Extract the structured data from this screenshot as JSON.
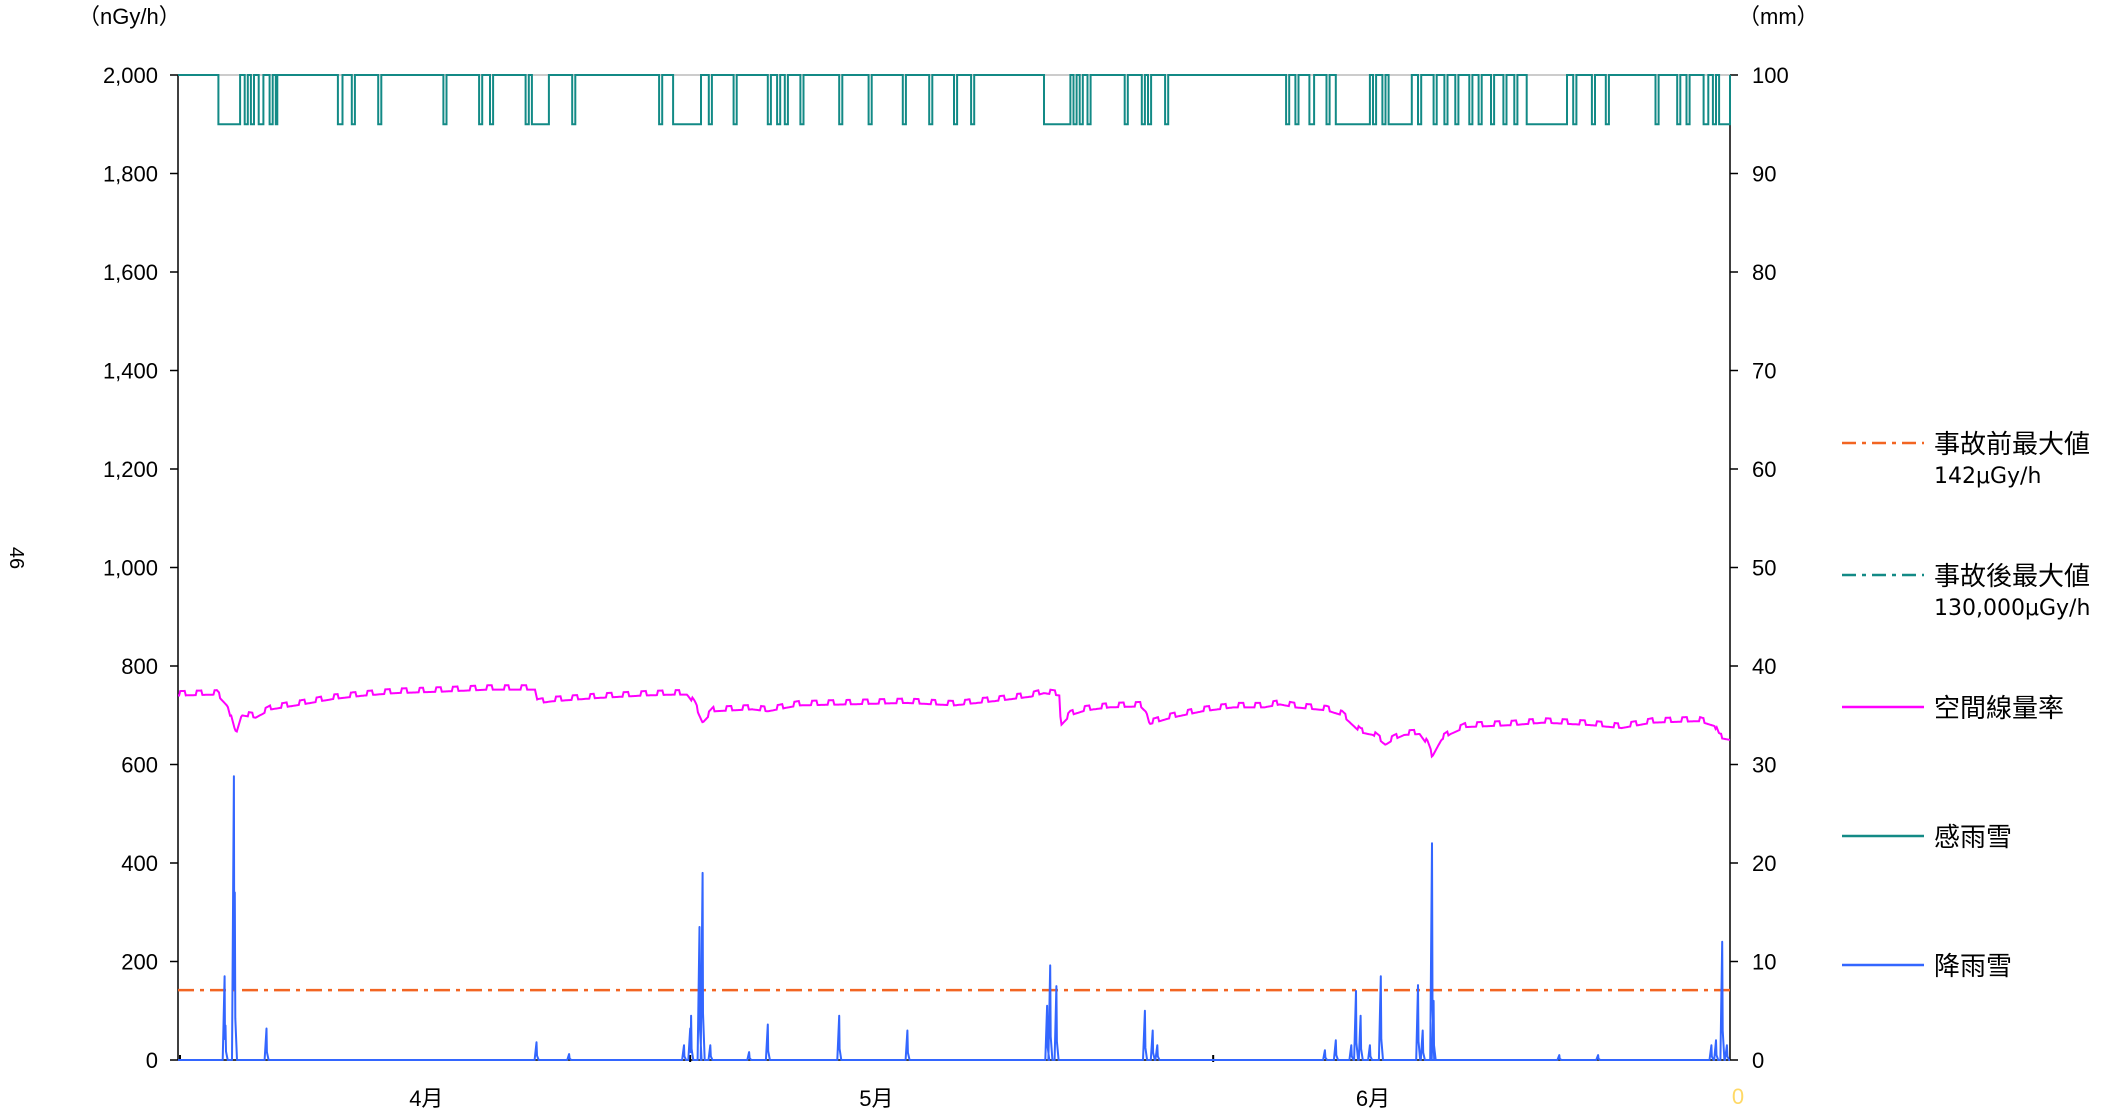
{
  "page_number": "46",
  "chart_data": {
    "type": "line",
    "left_axis_unit": "（nGy/h）",
    "right_axis_unit": "（mm）",
    "y_left": {
      "min": 0,
      "max": 2000,
      "ticks": [
        "0",
        "200",
        "400",
        "600",
        "800",
        "1,000",
        "1,200",
        "1,400",
        "1,600",
        "1,800",
        "2,000"
      ],
      "tick_values": [
        0,
        200,
        400,
        600,
        800,
        1000,
        1200,
        1400,
        1600,
        1800,
        2000
      ]
    },
    "y_right": {
      "min": 0,
      "max": 100,
      "ticks": [
        "0",
        "10",
        "20",
        "30",
        "40",
        "50",
        "60",
        "70",
        "80",
        "90",
        "100"
      ],
      "tick_values": [
        0,
        10,
        20,
        30,
        40,
        50,
        60,
        70,
        80,
        90,
        100
      ]
    },
    "x": {
      "min": 0,
      "max": 100,
      "month_labels": [
        {
          "label": "4月",
          "x": 16
        },
        {
          "label": "5月",
          "x": 45
        },
        {
          "label": "6月",
          "x": 77
        }
      ],
      "month_boundaries": [
        33,
        66.7
      ]
    },
    "orphan_label": "0",
    "legend": [
      {
        "label": "事故前最大値",
        "sub": "142μGy/h",
        "style": "dashdot",
        "color": "#f26522"
      },
      {
        "label": "事故後最大値",
        "sub": "130,000μGy/h",
        "style": "dashdot",
        "color": "#138a86"
      },
      {
        "label": "空間線量率",
        "sub": "",
        "style": "solid",
        "color": "#ff00ff"
      },
      {
        "label": "感雨雪",
        "sub": "",
        "style": "solid",
        "color": "#138a86"
      },
      {
        "label": "降雨雪",
        "sub": "",
        "style": "solid",
        "color": "#3366ff"
      }
    ],
    "series": [
      {
        "name": "事故前最大値",
        "axis": "left",
        "color": "#f26522",
        "points": [
          [
            0,
            142
          ],
          [
            100,
            142
          ]
        ]
      },
      {
        "name": "空間線量率",
        "axis": "left",
        "color": "#ff00ff",
        "points": [
          [
            0,
            740
          ],
          [
            2.5,
            742
          ],
          [
            3.2,
            718
          ],
          [
            3.7,
            658
          ],
          [
            4.1,
            700
          ],
          [
            5,
            695
          ],
          [
            6,
            712
          ],
          [
            8,
            722
          ],
          [
            10,
            733
          ],
          [
            12,
            740
          ],
          [
            14,
            745
          ],
          [
            17,
            748
          ],
          [
            20,
            752
          ],
          [
            23,
            752
          ],
          [
            23.2,
            724
          ],
          [
            24,
            728
          ],
          [
            27,
            735
          ],
          [
            30,
            740
          ],
          [
            32,
            742
          ],
          [
            32.8,
            742
          ],
          [
            33.3,
            720
          ],
          [
            33.8,
            685
          ],
          [
            34.5,
            708
          ],
          [
            37,
            712
          ],
          [
            38,
            708
          ],
          [
            40,
            720
          ],
          [
            43,
            722
          ],
          [
            47,
            725
          ],
          [
            50,
            720
          ],
          [
            53,
            730
          ],
          [
            55,
            738
          ],
          [
            55.8,
            745
          ],
          [
            56.8,
            740
          ],
          [
            56.8,
            720
          ],
          [
            56.9,
            680
          ],
          [
            57.5,
            700
          ],
          [
            58.5,
            710
          ],
          [
            60,
            716
          ],
          [
            62,
            718
          ],
          [
            62.4,
            706
          ],
          [
            62.6,
            682
          ],
          [
            64,
            695
          ],
          [
            66,
            708
          ],
          [
            68,
            716
          ],
          [
            70,
            716
          ],
          [
            71,
            722
          ],
          [
            72,
            716
          ],
          [
            74,
            710
          ],
          [
            75,
            700
          ],
          [
            76.2,
            665
          ],
          [
            77,
            660
          ],
          [
            77.8,
            640
          ],
          [
            78.3,
            650
          ],
          [
            79,
            660
          ],
          [
            80,
            662
          ],
          [
            80.5,
            640
          ],
          [
            80.8,
            615
          ],
          [
            81.4,
            650
          ],
          [
            82,
            662
          ],
          [
            83,
            676
          ],
          [
            86,
            680
          ],
          [
            88,
            685
          ],
          [
            91,
            680
          ],
          [
            93,
            674
          ],
          [
            95,
            685
          ],
          [
            98,
            688
          ],
          [
            99,
            678
          ],
          [
            99.3,
            654
          ],
          [
            100,
            650
          ]
        ],
        "wiggle": 9
      },
      {
        "name": "降雨雪",
        "axis": "right",
        "color": "#3366ff",
        "events": [
          {
            "x": 3.0,
            "peaks": [
              8.5,
              3.5
            ]
          },
          {
            "x": 3.6,
            "peaks": [
              28.8,
              17
            ]
          },
          {
            "x": 5.7,
            "peaks": [
              3.2
            ]
          },
          {
            "x": 23.1,
            "peaks": [
              1.8
            ]
          },
          {
            "x": 25.2,
            "peaks": [
              0.6
            ]
          },
          {
            "x": 32.6,
            "peaks": [
              1.5
            ]
          },
          {
            "x": 33.0,
            "peaks": [
              3.2,
              4.5
            ]
          },
          {
            "x": 33.6,
            "peaks": [
              13.5
            ]
          },
          {
            "x": 33.8,
            "peaks": [
              19
            ]
          },
          {
            "x": 34.3,
            "peaks": [
              1.5
            ]
          },
          {
            "x": 36.8,
            "peaks": [
              0.8
            ]
          },
          {
            "x": 38.0,
            "peaks": [
              3.6
            ]
          },
          {
            "x": 42.6,
            "peaks": [
              4.5
            ]
          },
          {
            "x": 47.0,
            "peaks": [
              3.0
            ]
          },
          {
            "x": 56.0,
            "peaks": [
              5.5
            ]
          },
          {
            "x": 56.2,
            "peaks": [
              9.6
            ]
          },
          {
            "x": 56.6,
            "peaks": [
              7.5
            ]
          },
          {
            "x": 62.3,
            "peaks": [
              5.0
            ]
          },
          {
            "x": 62.8,
            "peaks": [
              3.0
            ]
          },
          {
            "x": 63.1,
            "peaks": [
              1.5
            ]
          },
          {
            "x": 73.9,
            "peaks": [
              1.0
            ]
          },
          {
            "x": 74.6,
            "peaks": [
              2.0
            ]
          },
          {
            "x": 75.6,
            "peaks": [
              1.5
            ]
          },
          {
            "x": 75.9,
            "peaks": [
              7.0
            ]
          },
          {
            "x": 76.2,
            "peaks": [
              4.5
            ]
          },
          {
            "x": 76.8,
            "peaks": [
              1.5
            ]
          },
          {
            "x": 77.5,
            "peaks": [
              8.5
            ]
          },
          {
            "x": 79.9,
            "peaks": [
              7.6
            ]
          },
          {
            "x": 80.2,
            "peaks": [
              3.0
            ]
          },
          {
            "x": 80.8,
            "peaks": [
              22
            ]
          },
          {
            "x": 80.9,
            "peaks": [
              6
            ]
          },
          {
            "x": 89.0,
            "peaks": [
              0.5
            ]
          },
          {
            "x": 91.5,
            "peaks": [
              0.5
            ]
          },
          {
            "x": 98.8,
            "peaks": [
              1.5
            ]
          },
          {
            "x": 99.1,
            "peaks": [
              2.0
            ]
          },
          {
            "x": 99.5,
            "peaks": [
              12
            ]
          },
          {
            "x": 99.8,
            "peaks": [
              1.5
            ]
          }
        ]
      },
      {
        "name": "感雨雪",
        "axis": "right",
        "color": "#138a86",
        "wet_intervals": [
          [
            2.6,
            4.0
          ],
          [
            4.3,
            4.5
          ],
          [
            4.7,
            4.9
          ],
          [
            5.2,
            5.5
          ],
          [
            5.9,
            6.1
          ],
          [
            6.3,
            6.4
          ],
          [
            10.3,
            10.6
          ],
          [
            11.2,
            11.4
          ],
          [
            12.9,
            13.1
          ],
          [
            17.1,
            17.3
          ],
          [
            19.4,
            19.6
          ],
          [
            20.1,
            20.3
          ],
          [
            22.4,
            22.6
          ],
          [
            22.8,
            23.9
          ],
          [
            25.4,
            25.6
          ],
          [
            31.0,
            31.2
          ],
          [
            31.9,
            33.7
          ],
          [
            34.2,
            34.4
          ],
          [
            35.8,
            36.0
          ],
          [
            38.0,
            38.2
          ],
          [
            38.6,
            38.8
          ],
          [
            39.1,
            39.3
          ],
          [
            40.1,
            40.3
          ],
          [
            42.6,
            42.8
          ],
          [
            44.5,
            44.7
          ],
          [
            46.7,
            46.9
          ],
          [
            48.4,
            48.6
          ],
          [
            50.0,
            50.2
          ],
          [
            51.1,
            51.3
          ],
          [
            55.8,
            57.5
          ],
          [
            57.7,
            57.9
          ],
          [
            58.1,
            58.3
          ],
          [
            58.6,
            58.8
          ],
          [
            61.0,
            61.2
          ],
          [
            62.1,
            62.3
          ],
          [
            62.5,
            62.7
          ],
          [
            63.6,
            63.8
          ],
          [
            71.4,
            71.6
          ],
          [
            72.0,
            72.2
          ],
          [
            72.9,
            73.2
          ],
          [
            74.0,
            74.2
          ],
          [
            74.6,
            76.8
          ],
          [
            77.0,
            77.2
          ],
          [
            77.6,
            77.8
          ],
          [
            78.0,
            79.5
          ],
          [
            79.9,
            80.1
          ],
          [
            80.9,
            81.1
          ],
          [
            81.6,
            81.8
          ],
          [
            82.3,
            82.5
          ],
          [
            83.2,
            83.4
          ],
          [
            83.8,
            84.0
          ],
          [
            84.6,
            84.8
          ],
          [
            85.4,
            85.6
          ],
          [
            86.1,
            86.3
          ],
          [
            86.9,
            89.5
          ],
          [
            89.9,
            90.1
          ],
          [
            91.1,
            91.3
          ],
          [
            92.0,
            92.2
          ],
          [
            95.2,
            95.4
          ],
          [
            96.6,
            96.8
          ],
          [
            97.2,
            97.4
          ],
          [
            98.3,
            98.6
          ],
          [
            98.9,
            99.1
          ],
          [
            99.3,
            100
          ]
        ],
        "dry_value": 100,
        "wet_value": 95
      }
    ]
  }
}
